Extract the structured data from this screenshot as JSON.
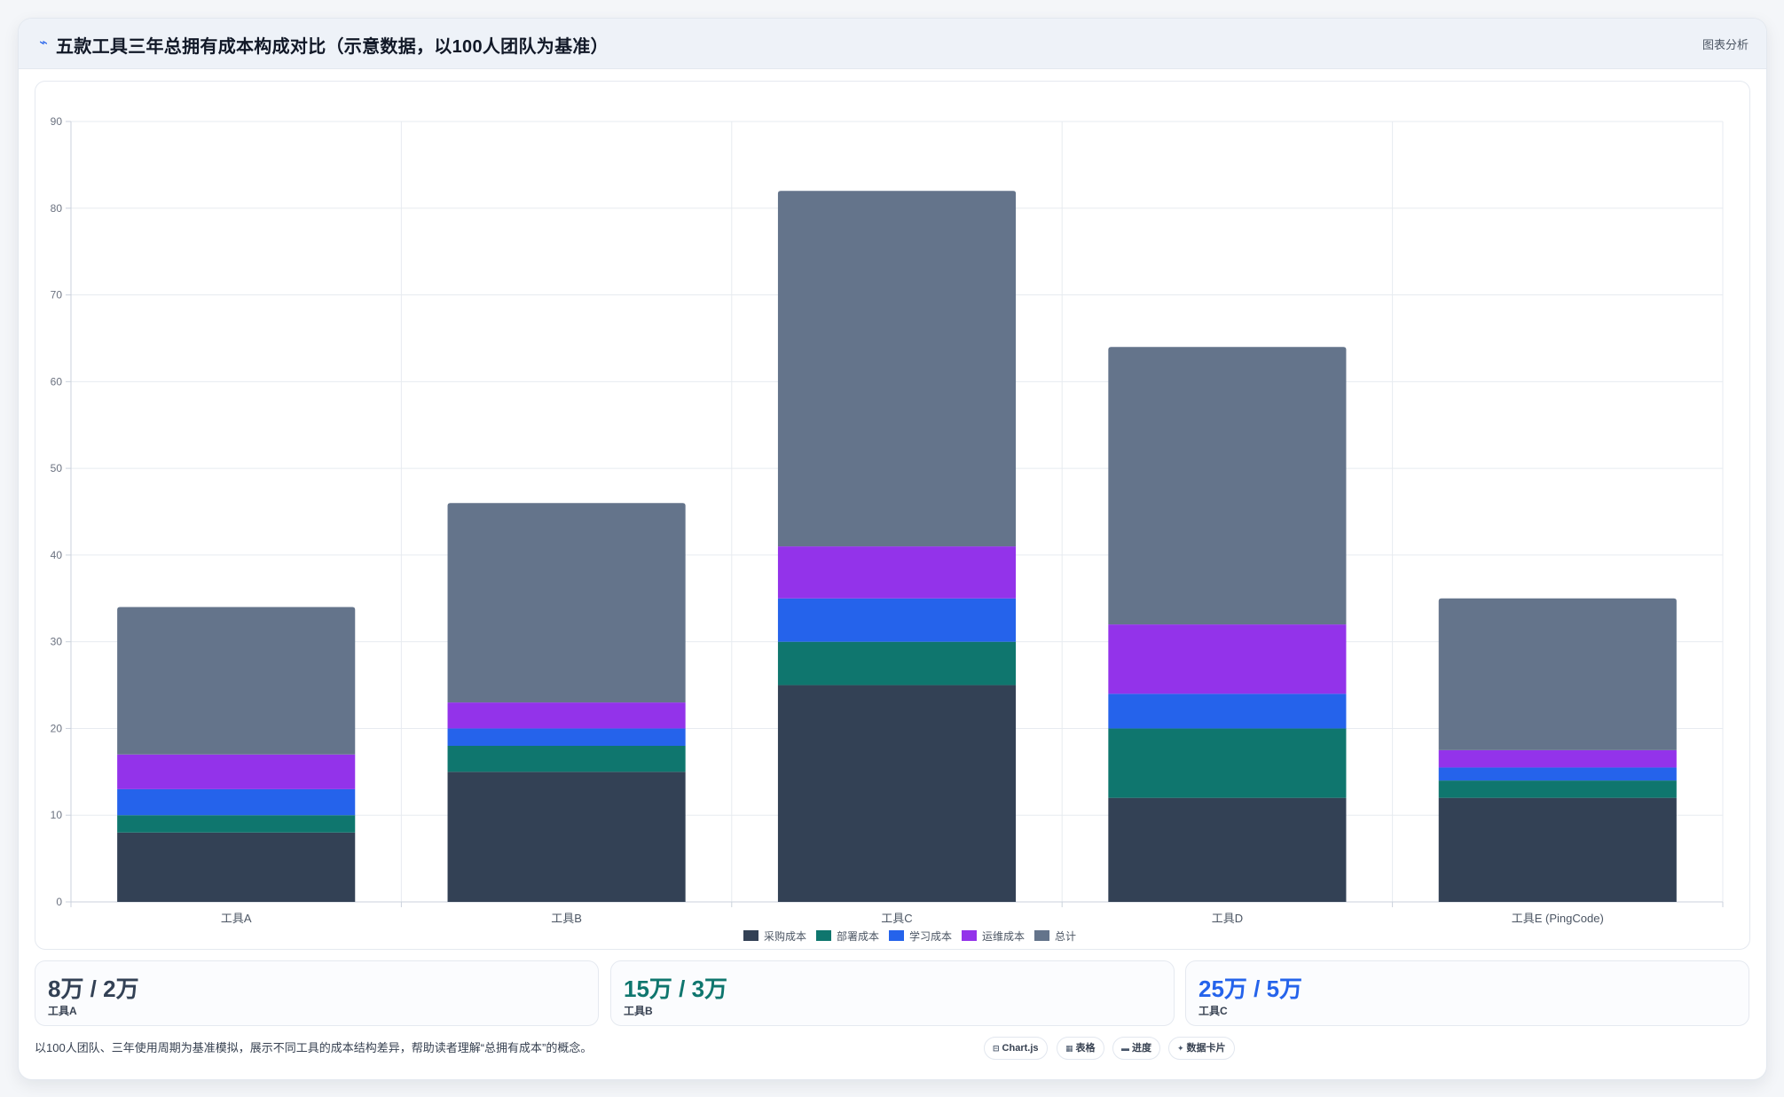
{
  "header": {
    "title": "五款工具三年总拥有成本构成对比（示意数据，以100人团队为基准）",
    "tag": "图表分析",
    "icon": "trend-line-icon"
  },
  "chart_data": {
    "type": "bar",
    "stacked": true,
    "categories": [
      "工具A",
      "工具B",
      "工具C",
      "工具D",
      "工具E (PingCode)"
    ],
    "series": [
      {
        "name": "采购成本",
        "color": "#334155",
        "values": [
          8,
          15,
          25,
          12,
          12
        ]
      },
      {
        "name": "部署成本",
        "color": "#0f766e",
        "values": [
          2,
          3,
          5,
          8,
          2
        ]
      },
      {
        "name": "学习成本",
        "color": "#2563eb",
        "values": [
          3,
          2,
          5,
          4,
          1.5
        ]
      },
      {
        "name": "运维成本",
        "color": "#9333ea",
        "values": [
          4,
          3,
          6,
          8,
          2
        ]
      },
      {
        "name": "总计",
        "color": "#64748b",
        "values": [
          17,
          23,
          41,
          32,
          17.5
        ]
      }
    ],
    "ylim": [
      0,
      90
    ],
    "yticks": [
      "0",
      "10",
      "20",
      "30",
      "40",
      "50",
      "60",
      "70",
      "80",
      "90"
    ],
    "grid": true,
    "legend_position": "bottom",
    "xlabel": "",
    "ylabel": ""
  },
  "stats": [
    {
      "value": "8万 / 2万",
      "label": "工具A",
      "color": "#334155"
    },
    {
      "value": "15万 / 3万",
      "label": "工具B",
      "color": "#0f766e"
    },
    {
      "value": "25万 / 5万",
      "label": "工具C",
      "color": "#2563eb"
    }
  ],
  "footer": {
    "note": "以100人团队、三年使用周期为基准模拟，展示不同工具的成本结构差异，帮助读者理解“总拥有成本”的概念。",
    "chips": [
      {
        "icon": "chart-icon",
        "glyph": "⊟",
        "label": "Chart.js"
      },
      {
        "icon": "table-icon",
        "glyph": "▦",
        "label": "表格"
      },
      {
        "icon": "progress-icon",
        "glyph": "▬",
        "label": "进度"
      },
      {
        "icon": "sparkle-icon",
        "glyph": "✦",
        "label": "数据卡片"
      }
    ]
  }
}
